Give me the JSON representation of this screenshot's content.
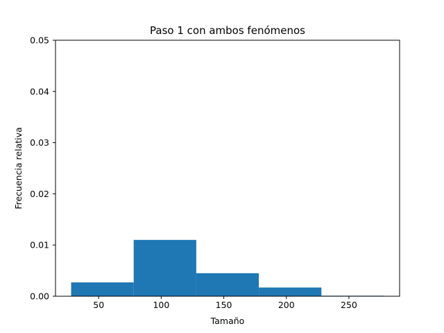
{
  "chart_data": {
    "type": "bar",
    "title": "Paso 1 con ambos fenómenos",
    "xlabel": "Tamaño",
    "ylabel": "Frecuencia relativa",
    "bins": [
      {
        "start": 28,
        "end": 78,
        "value": 0.0027
      },
      {
        "start": 78,
        "end": 128,
        "value": 0.011
      },
      {
        "start": 128,
        "end": 178,
        "value": 0.0045
      },
      {
        "start": 178,
        "end": 228,
        "value": 0.0017
      },
      {
        "start": 228,
        "end": 278,
        "value": 0.0001
      }
    ],
    "xlim": [
      15.5,
      290.5
    ],
    "ylim": [
      0,
      0.05
    ],
    "xticks": [
      50,
      100,
      150,
      200,
      250
    ],
    "xtick_labels": [
      "50",
      "100",
      "150",
      "200",
      "250"
    ],
    "yticks": [
      0,
      0.01,
      0.02,
      0.03,
      0.04,
      0.05
    ],
    "ytick_labels": [
      "0.00",
      "0.01",
      "0.02",
      "0.03",
      "0.04",
      "0.05"
    ],
    "grid": false,
    "legend": "none",
    "bar_color": "#1f77b4"
  }
}
